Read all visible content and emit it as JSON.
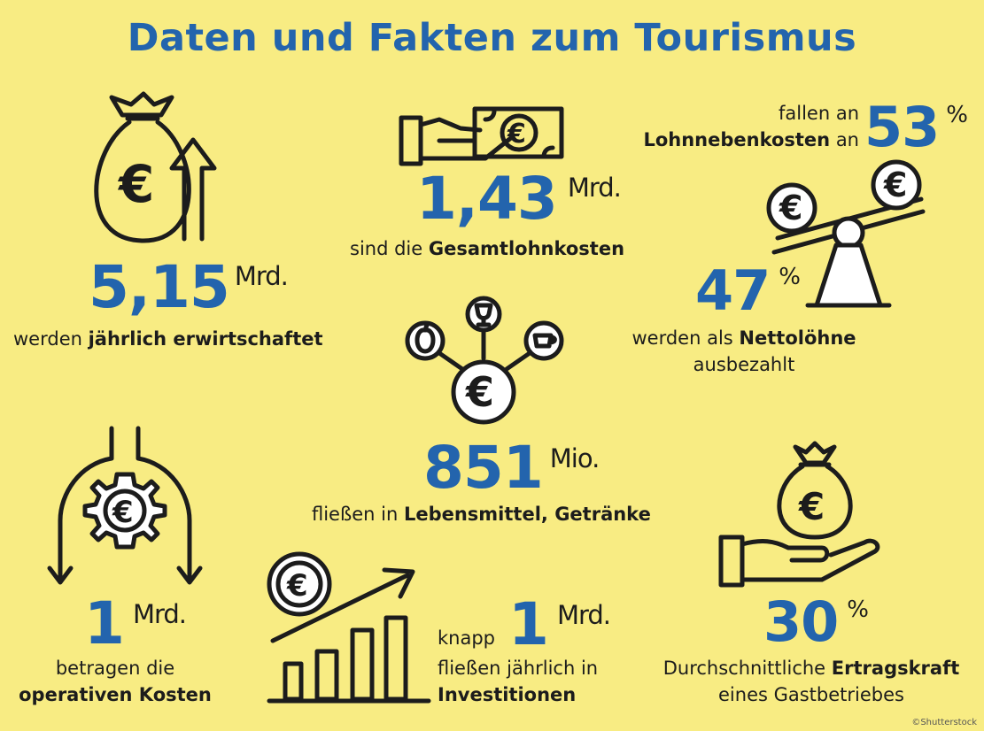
{
  "title": "Daten und Fakten zum Tourismus",
  "facts": {
    "revenue": {
      "value": "5,15",
      "unit": "Mrd.",
      "text_pre": "werden",
      "text_bold": "jährlich erwirtschaftet"
    },
    "wages": {
      "value": "1,43",
      "unit": "Mrd.",
      "text_pre": "sind die",
      "text_bold": "Gesamtlohnkosten"
    },
    "ancillary": {
      "line1": "fallen an",
      "bold": "Lohnnebenkosten",
      "line2_post": "an",
      "value": "53",
      "unit": "%"
    },
    "net_wages": {
      "value": "47",
      "unit": "%",
      "text_pre": "werden als",
      "text_bold": "Nettolöhne",
      "text_line2": "ausbezahlt"
    },
    "food": {
      "value": "851",
      "unit": "Mio.",
      "text_pre": "fließen in",
      "text_bold": "Lebensmittel, Getränke"
    },
    "operating": {
      "value": "1",
      "unit": "Mrd.",
      "line1": "betragen die",
      "bold": "operativen Kosten"
    },
    "investments": {
      "pre": "knapp",
      "value": "1",
      "unit": "Mrd.",
      "line2": "fließen jährlich in",
      "bold": "Investitionen"
    },
    "profit": {
      "value": "30",
      "unit": "%",
      "line1_pre": "Durchschnittliche",
      "line1_bold": "Ertragskraft",
      "line2": "eines Gastbetriebes"
    }
  },
  "icons": {
    "euro_symbol": "€",
    "names": [
      "money-bag-arrow-icon",
      "hand-banknote-icon",
      "balance-scale-coins-icon",
      "food-drinks-euro-icon",
      "gear-euro-arrows-icon",
      "coin-growth-chart-icon",
      "hand-money-bag-icon"
    ]
  },
  "credit": "©Shutterstock",
  "colors": {
    "background": "#f8ec83",
    "accent": "#2364ad",
    "text": "#1c1c1c"
  }
}
